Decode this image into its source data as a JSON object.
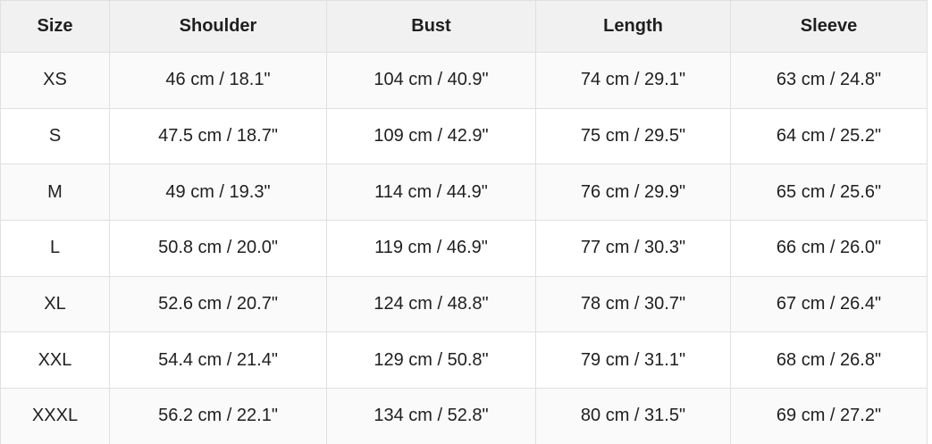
{
  "size_chart": {
    "columns": [
      "Size",
      "Shoulder",
      "Bust",
      "Length",
      "Sleeve"
    ],
    "rows": [
      [
        "XS",
        "46 cm / 18.1\"",
        "104 cm / 40.9\"",
        "74 cm / 29.1\"",
        "63 cm / 24.8\""
      ],
      [
        "S",
        "47.5 cm / 18.7\"",
        "109 cm / 42.9\"",
        "75 cm / 29.5\"",
        "64 cm / 25.2\""
      ],
      [
        "M",
        "49 cm / 19.3\"",
        "114 cm / 44.9\"",
        "76 cm / 29.9\"",
        "65 cm / 25.6\""
      ],
      [
        "L",
        "50.8 cm / 20.0\"",
        "119 cm / 46.9\"",
        "77 cm / 30.3\"",
        "66 cm / 26.0\""
      ],
      [
        "XL",
        "52.6 cm / 20.7\"",
        "124 cm / 48.8\"",
        "78 cm / 30.7\"",
        "67 cm / 26.4\""
      ],
      [
        "XXL",
        "54.4 cm / 21.4\"",
        "129 cm / 50.8\"",
        "79 cm / 31.1\"",
        "68 cm / 26.8\""
      ],
      [
        "XXXL",
        "56.2 cm / 22.1\"",
        "134 cm / 52.8\"",
        "80 cm / 31.5\"",
        "69 cm / 27.2\""
      ]
    ],
    "colors": {
      "header_background": "#f1f1f2",
      "stripe_background": "#fafafa",
      "row_background": "#ffffff",
      "border": "#e0e0e0",
      "text": "#1f1f1f"
    }
  }
}
